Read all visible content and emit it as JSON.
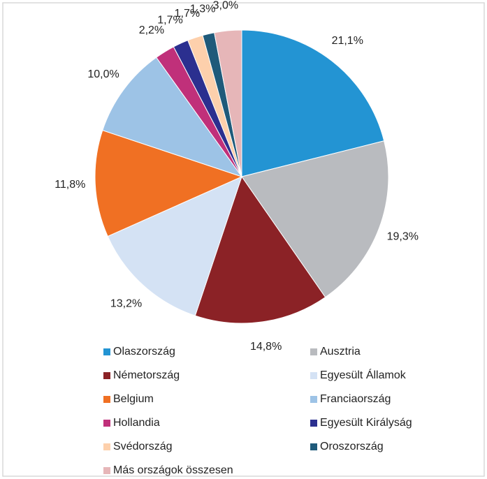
{
  "chart_data": {
    "type": "pie",
    "categories": [
      "Olaszország",
      "Ausztria",
      "Németország",
      "Egyesült Államok",
      "Belgium",
      "Franciaország",
      "Hollandia",
      "Egyesült Királyság",
      "Svédország",
      "Oroszország",
      "Más országok összesen"
    ],
    "values": [
      21.1,
      19.3,
      14.8,
      13.2,
      11.8,
      10.0,
      2.2,
      1.7,
      1.7,
      1.3,
      3.0
    ],
    "value_labels": [
      "21,1%",
      "19,3%",
      "14,8%",
      "13,2%",
      "11,8%",
      "10,0%",
      "2,2%",
      "1,7%",
      "1,7%",
      "1,3%",
      "3,0%"
    ],
    "colors": [
      "#2394d3",
      "#b9bbbf",
      "#8b2226",
      "#d4e2f4",
      "#f07023",
      "#9dc3e6",
      "#c0307a",
      "#2b2f8f",
      "#fdd0ac",
      "#1f5a7a",
      "#e6b6b8"
    ]
  }
}
